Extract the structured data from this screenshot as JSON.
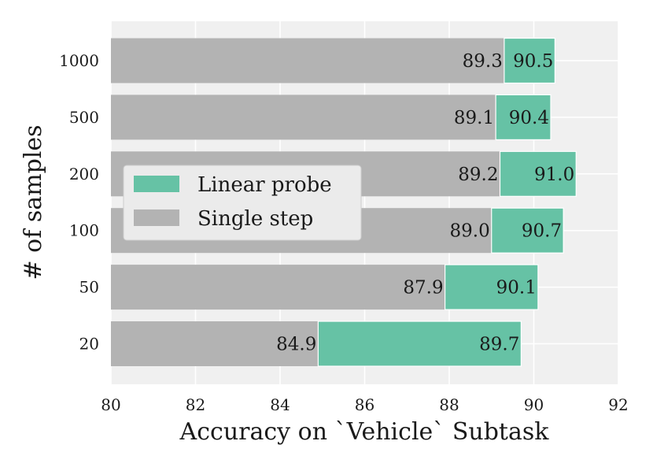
{
  "chart_data": {
    "type": "bar",
    "orientation": "horizontal",
    "stacked": "overlay",
    "categories": [
      "20",
      "50",
      "100",
      "200",
      "500",
      "1000"
    ],
    "series": [
      {
        "name": "Linear probe",
        "values": [
          89.7,
          90.1,
          90.7,
          91.0,
          90.4,
          90.5
        ],
        "color": "#66c2a5"
      },
      {
        "name": "Single step",
        "values": [
          84.9,
          87.9,
          89.0,
          89.2,
          89.1,
          89.3
        ],
        "color": "#b3b3b3"
      }
    ],
    "xlabel": "Accuracy on `Vehicle` Subtask",
    "ylabel": "# of samples",
    "xlim": [
      80,
      92
    ],
    "xticks": [
      "80",
      "82",
      "84",
      "86",
      "88",
      "90",
      "92"
    ],
    "grid": true,
    "legend_position": "center-left",
    "background_color": "#f0f0f0"
  }
}
